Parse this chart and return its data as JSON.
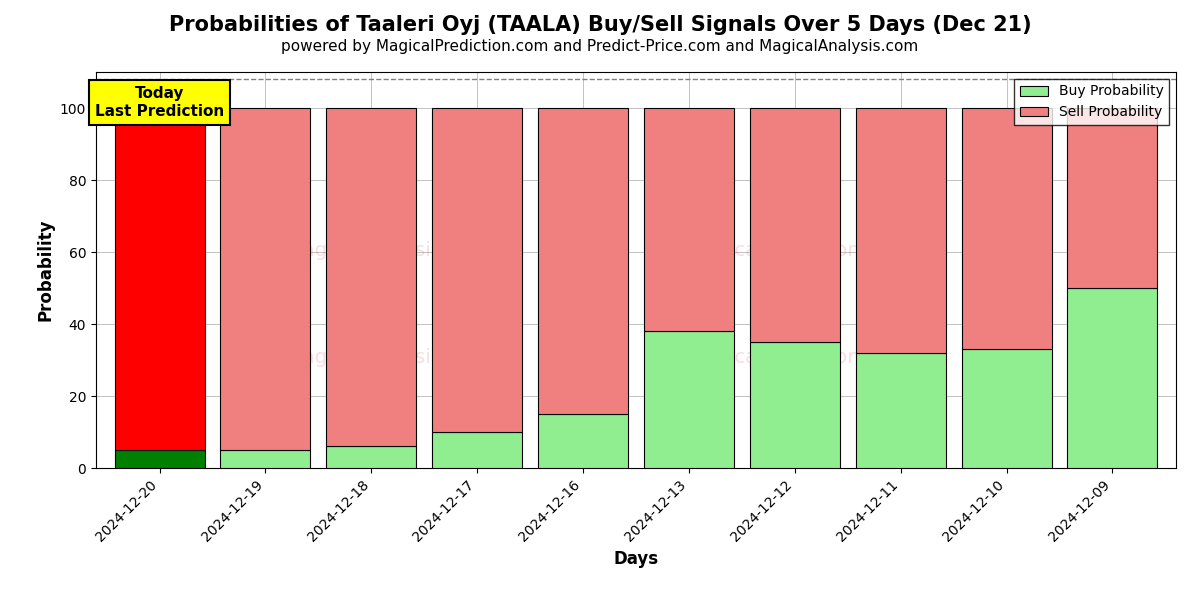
{
  "title": "Probabilities of Taaleri Oyj (TAALA) Buy/Sell Signals Over 5 Days (Dec 21)",
  "subtitle": "powered by MagicalPrediction.com and Predict-Price.com and MagicalAnalysis.com",
  "xlabel": "Days",
  "ylabel": "Probability",
  "dates": [
    "2024-12-20",
    "2024-12-19",
    "2024-12-18",
    "2024-12-17",
    "2024-12-16",
    "2024-12-13",
    "2024-12-12",
    "2024-12-11",
    "2024-12-10",
    "2024-12-09"
  ],
  "buy_probs": [
    5,
    5,
    6,
    10,
    15,
    38,
    35,
    32,
    33,
    50
  ],
  "sell_probs": [
    95,
    95,
    94,
    90,
    85,
    62,
    65,
    68,
    67,
    50
  ],
  "today_index": 0,
  "today_buy_color": "#008000",
  "today_sell_color": "#ff0000",
  "other_buy_color": "#90ee90",
  "other_sell_color": "#f08080",
  "today_label_bg": "#ffff00",
  "today_label_text": "Today\nLast Prediction",
  "ylim": [
    0,
    110
  ],
  "dashed_line_y": 108,
  "bar_width": 0.85,
  "edgecolor": "black",
  "grid_color": "#aaaaaa",
  "legend_buy_label": "Buy Probability",
  "legend_sell_label": "Sell Probability",
  "title_fontsize": 15,
  "subtitle_fontsize": 11,
  "ylabel_fontsize": 12,
  "xlabel_fontsize": 12,
  "tick_fontsize": 10
}
